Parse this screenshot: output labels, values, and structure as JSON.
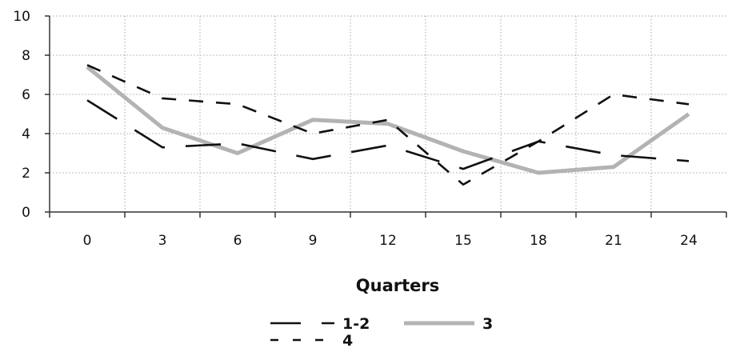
{
  "chart_data": {
    "type": "line",
    "title": "",
    "xlabel": "Quarters",
    "ylabel": "",
    "x": [
      0,
      3,
      6,
      9,
      12,
      15,
      18,
      21,
      24
    ],
    "xlim": [
      -1.5,
      25.5
    ],
    "ylim": [
      0,
      10
    ],
    "yticks": [
      0,
      2,
      4,
      6,
      8,
      10
    ],
    "grid": true,
    "legend_position": "bottom",
    "series": [
      {
        "name": "1-2",
        "values": [
          5.7,
          3.3,
          3.5,
          2.7,
          3.4,
          2.2,
          3.6,
          2.9,
          2.6
        ],
        "color": "#111111",
        "style": "long-dash"
      },
      {
        "name": "3",
        "values": [
          7.4,
          4.3,
          3.0,
          4.7,
          4.5,
          3.1,
          2.0,
          2.3,
          5.0
        ],
        "color": "#b3b3b3",
        "style": "solid-thick"
      },
      {
        "name": "4",
        "values": [
          7.5,
          5.8,
          5.5,
          4.0,
          4.7,
          1.4,
          3.6,
          6.0,
          5.5
        ],
        "color": "#111111",
        "style": "short-dash"
      }
    ]
  }
}
